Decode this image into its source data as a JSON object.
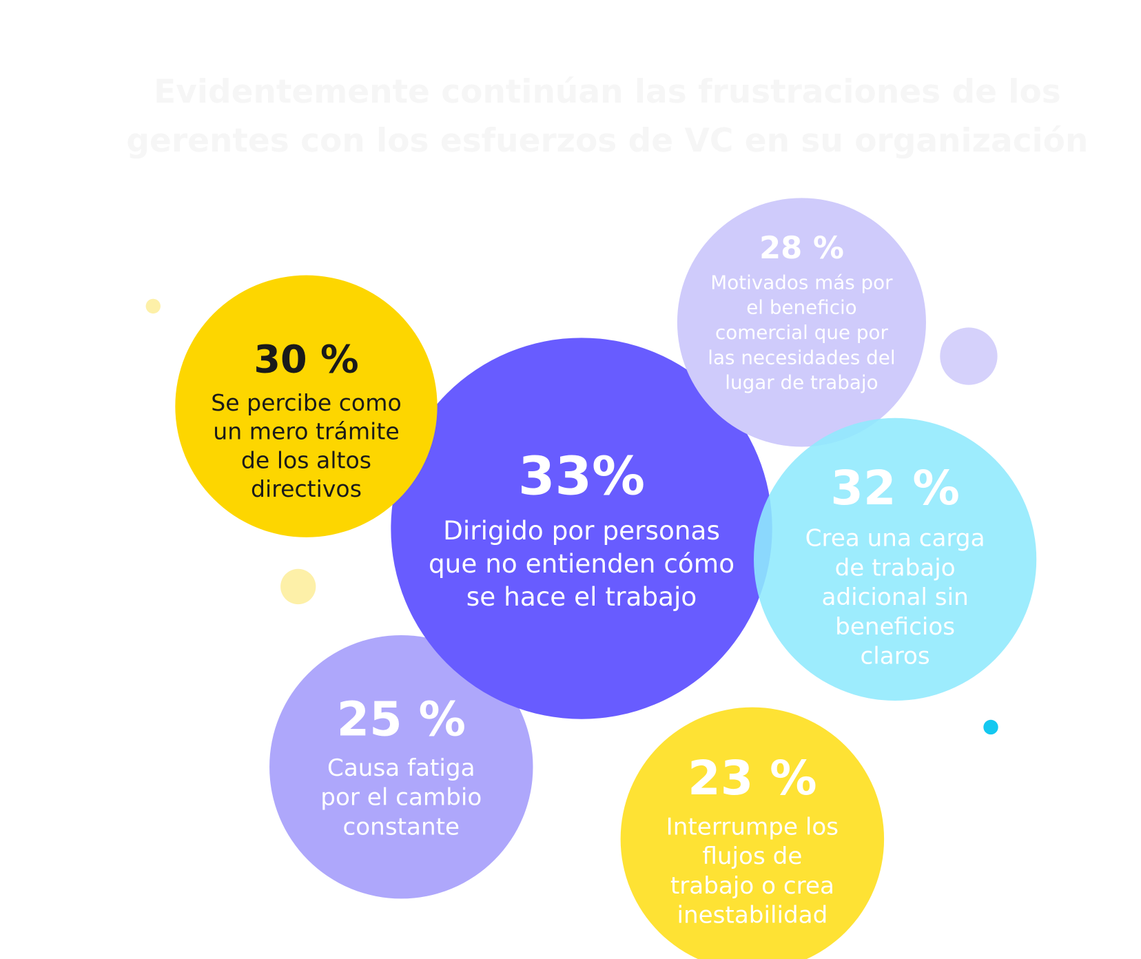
{
  "header": {
    "title_lines": [
      "Evidentemente continúan las frustraciones de los",
      "gerentes con los esfuerzos de VC en su organización"
    ]
  },
  "bubbles": [
    {
      "value": "25 %",
      "lines": [
        "Causa fatiga",
        "por el cambio",
        "constante"
      ]
    },
    {
      "value": "33%",
      "lines": [
        "Dirigido por personas",
        "que no entienden cómo",
        "se hace el trabajo"
      ]
    },
    {
      "value": "30 %",
      "lines": [
        "Se percibe como",
        "un mero trámite",
        "de los altos",
        "directivos"
      ]
    },
    {
      "value": "28 %",
      "lines": [
        "Motivados más por",
        "el beneficio",
        "comercial que por",
        "las necesidades del",
        "lugar de trabajo"
      ]
    },
    {
      "value": "32 %",
      "lines": [
        "Crea una carga",
        "de trabajo",
        "adicional sin",
        "beneficios",
        "claros"
      ]
    },
    {
      "value": "23 %",
      "lines": [
        "Interrumpe los",
        "flujos de",
        "trabajo o crea",
        "inestabilidad"
      ]
    }
  ]
}
